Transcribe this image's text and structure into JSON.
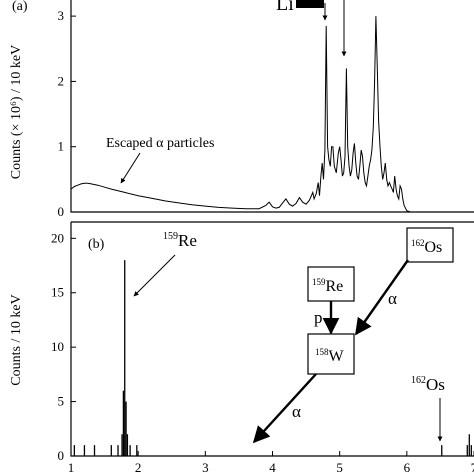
{
  "chart_data": [
    {
      "type": "line",
      "panel_label": "(a)",
      "ylabel": "Counts (× 10⁶) / 10 keV",
      "y_ticks": [
        "0",
        "1",
        "2",
        "3"
      ],
      "ylim": [
        0,
        3.4
      ],
      "xlim": [
        1,
        7
      ],
      "grid": false,
      "annotations": [
        {
          "id": "escaped",
          "text": "Escaped α particles"
        },
        {
          "id": "li",
          "text": "Li"
        }
      ],
      "series": [
        {
          "x": [
            1.0,
            1.05,
            1.1,
            1.15,
            1.2,
            1.25,
            1.3,
            1.4,
            1.5,
            1.6,
            1.8,
            2.0,
            2.2,
            2.4,
            2.6,
            2.8,
            3.0,
            3.2,
            3.4,
            3.6,
            3.8,
            3.9,
            3.95,
            4.0,
            4.05,
            4.1,
            4.15,
            4.2,
            4.25,
            4.3,
            4.35,
            4.4,
            4.45,
            4.5,
            4.55,
            4.6,
            4.62,
            4.65,
            4.68,
            4.7,
            4.72,
            4.74,
            4.76,
            4.78,
            4.8,
            4.82,
            4.84,
            4.86,
            4.88,
            4.9,
            4.92,
            4.95,
            4.98,
            5.0,
            5.02,
            5.04,
            5.06,
            5.08,
            5.1,
            5.12,
            5.14,
            5.16,
            5.18,
            5.2,
            5.22,
            5.24,
            5.26,
            5.28,
            5.3,
            5.32,
            5.34,
            5.36,
            5.38,
            5.4,
            5.42,
            5.44,
            5.46,
            5.48,
            5.5,
            5.52,
            5.54,
            5.56,
            5.58,
            5.6,
            5.62,
            5.64,
            5.66,
            5.68,
            5.7,
            5.72,
            5.74,
            5.76,
            5.78,
            5.8,
            5.82,
            5.84,
            5.86,
            5.88,
            5.9,
            5.92,
            5.94,
            5.96,
            6.0,
            6.05,
            6.1,
            6.2,
            6.3,
            6.4,
            6.5,
            6.6,
            6.7,
            6.8,
            6.9,
            7.0
          ],
          "y": [
            0.35,
            0.39,
            0.41,
            0.43,
            0.44,
            0.44,
            0.43,
            0.41,
            0.38,
            0.35,
            0.3,
            0.25,
            0.21,
            0.17,
            0.14,
            0.11,
            0.09,
            0.07,
            0.06,
            0.05,
            0.05,
            0.1,
            0.15,
            0.08,
            0.06,
            0.07,
            0.14,
            0.2,
            0.12,
            0.09,
            0.13,
            0.22,
            0.15,
            0.12,
            0.18,
            0.3,
            0.2,
            0.28,
            0.45,
            0.25,
            0.55,
            0.75,
            0.5,
            0.95,
            2.85,
            1.0,
            0.8,
            0.7,
            1.0,
            1.0,
            0.7,
            0.6,
            0.9,
            1.0,
            0.8,
            0.55,
            0.6,
            0.85,
            2.2,
            1.0,
            0.7,
            0.55,
            0.65,
            0.9,
            1.05,
            0.75,
            0.55,
            0.5,
            0.7,
            0.95,
            0.85,
            0.6,
            0.45,
            0.4,
            0.55,
            0.7,
            0.8,
            0.95,
            1.3,
            2.0,
            3.0,
            2.2,
            1.4,
            1.0,
            0.7,
            0.5,
            0.6,
            0.75,
            0.5,
            0.4,
            0.45,
            0.4,
            0.35,
            0.3,
            0.55,
            0.35,
            0.25,
            0.2,
            0.4,
            0.35,
            0.2,
            0.1,
            0.02,
            0.0,
            0.0,
            0.0,
            0.0,
            0.0,
            0.0,
            0.0,
            0.0,
            0.0,
            0.0,
            0.0
          ]
        }
      ]
    },
    {
      "type": "bar",
      "panel_label": "(b)",
      "ylabel": "Counts / 10 keV",
      "y_ticks": [
        "0",
        "5",
        "10",
        "15",
        "20"
      ],
      "ylim": [
        0,
        21.5
      ],
      "xlim": [
        1,
        7
      ],
      "x_ticks": [
        "1",
        "2",
        "3",
        "4",
        "5",
        "6",
        "7"
      ],
      "grid": false,
      "bars": [
        {
          "x": 1.05,
          "y": 1
        },
        {
          "x": 1.2,
          "y": 1
        },
        {
          "x": 1.35,
          "y": 1
        },
        {
          "x": 1.6,
          "y": 1
        },
        {
          "x": 1.7,
          "y": 1
        },
        {
          "x": 1.76,
          "y": 2
        },
        {
          "x": 1.78,
          "y": 6
        },
        {
          "x": 1.8,
          "y": 18
        },
        {
          "x": 1.82,
          "y": 5
        },
        {
          "x": 1.84,
          "y": 2
        },
        {
          "x": 1.88,
          "y": 1
        },
        {
          "x": 1.98,
          "y": 1
        },
        {
          "x": 6.52,
          "y": 1
        },
        {
          "x": 6.9,
          "y": 1
        },
        {
          "x": 6.93,
          "y": 2
        },
        {
          "x": 6.96,
          "y": 1
        }
      ],
      "annotations": [
        {
          "id": "re159",
          "mass": "159",
          "element": "Re"
        },
        {
          "id": "os162",
          "mass": "162",
          "element": "Os"
        }
      ],
      "decay_scheme": {
        "nodes": [
          {
            "id": "os162-box",
            "mass": "162",
            "element": "Os"
          },
          {
            "id": "re159-box",
            "mass": "159",
            "element": "Re"
          },
          {
            "id": "w158-box",
            "mass": "158",
            "element": "W"
          }
        ],
        "arrow_labels": [
          {
            "id": "os-to-w",
            "text": "α"
          },
          {
            "id": "re-to-w",
            "text": "p"
          },
          {
            "id": "w-out",
            "text": "α"
          }
        ]
      }
    }
  ]
}
